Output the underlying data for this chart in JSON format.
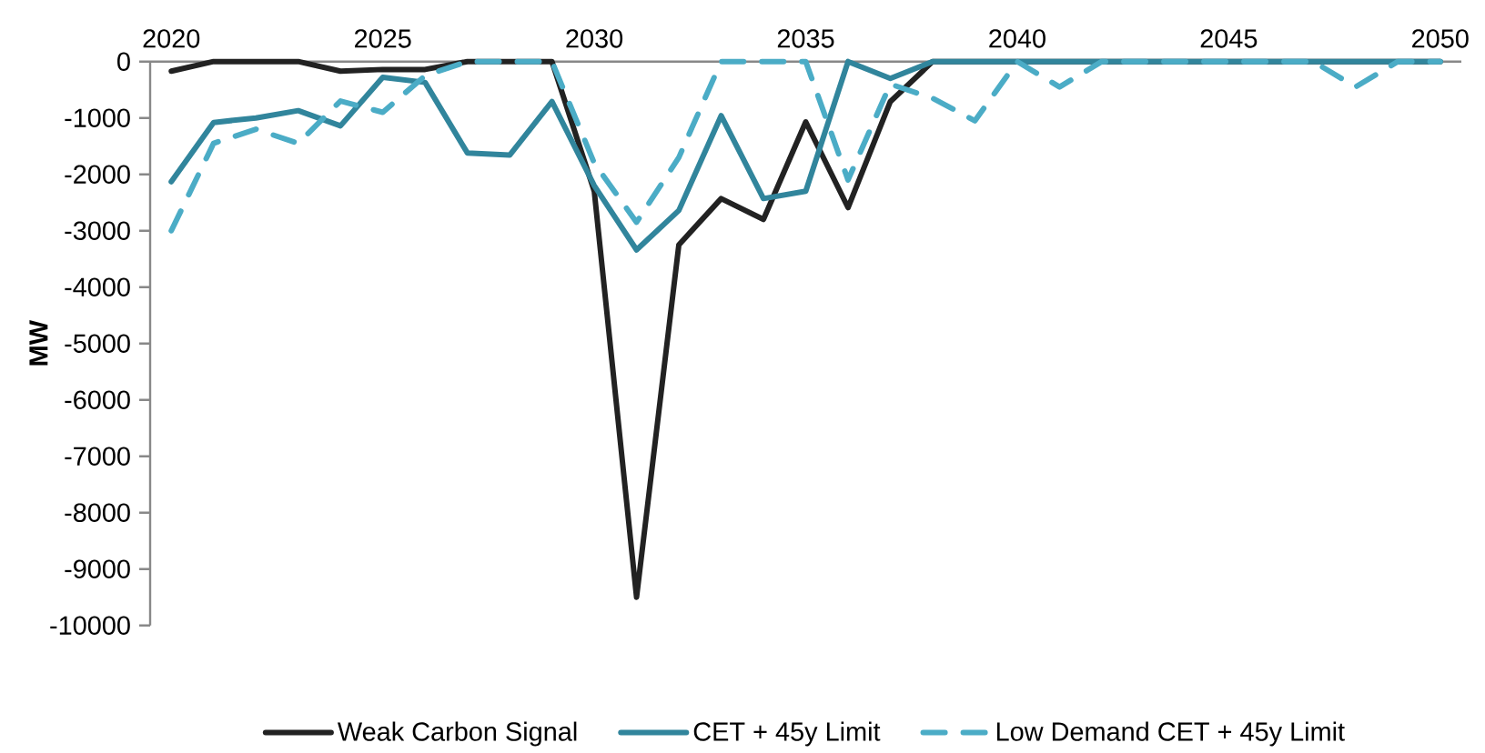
{
  "chart_data": {
    "type": "line",
    "ylabel": "MW",
    "x": [
      2020,
      2021,
      2022,
      2023,
      2024,
      2025,
      2026,
      2027,
      2028,
      2029,
      2030,
      2031,
      2032,
      2033,
      2034,
      2035,
      2036,
      2037,
      2038,
      2039,
      2040,
      2041,
      2042,
      2043,
      2044,
      2045,
      2046,
      2047,
      2048,
      2049,
      2050
    ],
    "series": [
      {
        "name": "Weak Carbon Signal",
        "color": "#222222",
        "line_style": "solid",
        "values": [
          -170,
          0,
          0,
          0,
          -170,
          -140,
          -140,
          0,
          0,
          0,
          -2300,
          -9500,
          -3250,
          -2430,
          -2800,
          -1070,
          -2590,
          -710,
          0,
          0,
          0,
          0,
          0,
          0,
          0,
          0,
          0,
          0,
          0,
          0,
          0
        ]
      },
      {
        "name": "CET + 45y Limit",
        "color": "#31859c",
        "line_style": "solid",
        "values": [
          -2130,
          -1080,
          -1000,
          -870,
          -1140,
          -280,
          -370,
          -1620,
          -1660,
          -710,
          -2200,
          -3340,
          -2640,
          -960,
          -2430,
          -2300,
          0,
          -300,
          0,
          0,
          0,
          0,
          0,
          0,
          0,
          0,
          0,
          0,
          0,
          0,
          0
        ]
      },
      {
        "name": "Low Demand CET + 45y Limit",
        "color": "#4bacc6",
        "line_style": "dashed",
        "values": [
          -3000,
          -1450,
          -1200,
          -1450,
          -700,
          -900,
          -250,
          0,
          0,
          0,
          -1800,
          -2850,
          -1700,
          0,
          0,
          0,
          -2100,
          -400,
          -650,
          -1050,
          0,
          -450,
          0,
          0,
          0,
          0,
          0,
          0,
          -450,
          0,
          0
        ]
      }
    ],
    "xlim": [
      2019.5,
      2050.5
    ],
    "ylim": [
      -10000,
      0
    ],
    "xticks": [
      2020,
      2025,
      2030,
      2035,
      2040,
      2045,
      2050
    ],
    "yticks": [
      0,
      -1000,
      -2000,
      -3000,
      -4000,
      -5000,
      -6000,
      -7000,
      -8000,
      -9000,
      -10000
    ],
    "legend": "bottom",
    "marker": "none"
  }
}
